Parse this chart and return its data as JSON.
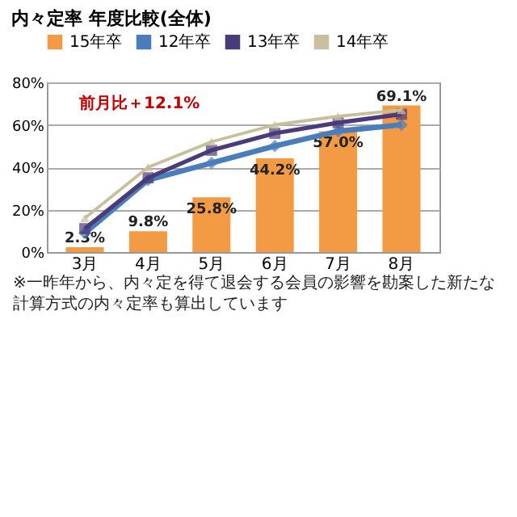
{
  "chart_data": {
    "type": "bar",
    "title": "内々定率 年度比較(全体)",
    "categories": [
      "3月",
      "4月",
      "5月",
      "6月",
      "7月",
      "8月"
    ],
    "series": [
      {
        "name": "15年卒",
        "color": "#f39a45",
        "values": [
          2.3,
          9.8,
          25.8,
          44.2,
          57.0,
          69.1
        ],
        "value_labels": [
          "2.3%",
          "9.8%",
          "25.8%",
          "44.2%",
          "57.0%",
          "69.1%"
        ]
      },
      {
        "name": "12年卒",
        "type": "line",
        "color": "#4a7ebb",
        "marker": "diamond",
        "values": [
          9,
          34,
          42,
          50,
          57,
          60
        ]
      },
      {
        "name": "13年卒",
        "type": "line",
        "color": "#4b3b7a",
        "marker": "square",
        "values": [
          11,
          35,
          48,
          56,
          61,
          65
        ]
      },
      {
        "name": "14年卒",
        "type": "line",
        "color": "#c8bf9c",
        "marker": "triangle",
        "values": [
          16,
          40,
          52,
          60,
          64,
          67
        ]
      }
    ],
    "ylim": [
      0,
      80
    ],
    "yticks": [
      {
        "value": 0,
        "label": "0%"
      },
      {
        "value": 20,
        "label": "20%"
      },
      {
        "value": 40,
        "label": "40%"
      },
      {
        "value": 60,
        "label": "60%"
      },
      {
        "value": 80,
        "label": "80%"
      }
    ],
    "grid": "y",
    "legend": "top",
    "annotations": [
      "前月比＋12.1%",
      "※一昨年から、内々定を得て退会する会員の影響を勘案した新たな計算方式の内々定率も算出しています"
    ]
  }
}
